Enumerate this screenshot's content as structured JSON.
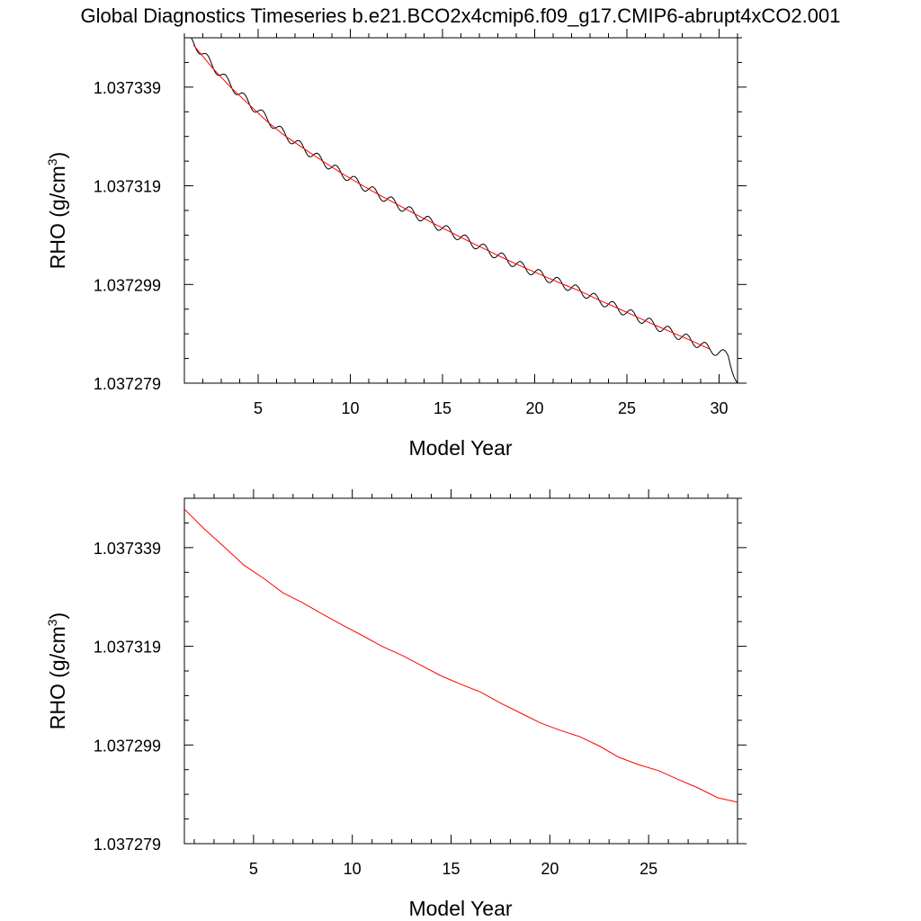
{
  "figure": {
    "title": "Global Diagnostics Timeseries b.e21.BCO2x4cmip6.f09_g17.CMIP6-abrupt4xCO2.001"
  },
  "chart_data": [
    {
      "type": "line",
      "xlabel": "Model Year",
      "ylabel": "RHO (g/cm³)",
      "ylabel_main": "RHO (g/cm",
      "ylabel_sup": "3",
      "ylabel_end": ")",
      "xlim": [
        1,
        31
      ],
      "ylim": [
        1.037279,
        1.037349
      ],
      "xticks": [
        5,
        10,
        15,
        20,
        25,
        30
      ],
      "yticks": [
        1.037279,
        1.037299,
        1.037319,
        1.037339
      ],
      "ytick_labels": [
        "1.037279",
        "1.037299",
        "1.037319",
        "1.037339"
      ],
      "grid": false,
      "series": [
        {
          "color": "#000000",
          "style": "monthly",
          "seasonal_amplitude": 9e-07,
          "x": [
            1.0,
            1.5,
            2.5,
            3.5,
            4.5,
            5.5,
            6.5,
            7.5,
            8.5,
            9.5,
            10.5,
            11.5,
            12.5,
            13.5,
            14.5,
            15.5,
            16.5,
            17.5,
            18.5,
            19.5,
            20.5,
            21.5,
            22.5,
            23.5,
            24.5,
            25.5,
            26.5,
            27.5,
            28.5,
            29.5,
            30.5,
            31.0
          ],
          "y": [
            1.0373495,
            1.037348,
            1.0373435,
            1.0373395,
            1.0373358,
            1.0373325,
            1.0373292,
            1.0373265,
            1.037324,
            1.0373216,
            1.0373194,
            1.0373173,
            1.0373153,
            1.0373133,
            1.0373114,
            1.0373095,
            1.0373076,
            1.0373058,
            1.037304,
            1.0373023,
            1.0373007,
            1.0372991,
            1.0372976,
            1.0372958,
            1.0372942,
            1.0372925,
            1.0372908,
            1.0372892,
            1.0372876,
            1.0372859,
            1.0372845,
            1.037279
          ]
        },
        {
          "color": "#ff0000",
          "style": "annual",
          "x": [
            1.5,
            2.5,
            3.5,
            4.5,
            5.5,
            6.5,
            7.5,
            8.5,
            9.5,
            10.5,
            11.5,
            12.5,
            13.5,
            14.5,
            15.5,
            16.5,
            17.5,
            18.5,
            19.5,
            20.5,
            21.5,
            22.5,
            23.5,
            24.5,
            25.5,
            26.5,
            27.5,
            28.5,
            29.5
          ],
          "y": [
            1.0373475,
            1.037343,
            1.037339,
            1.0373355,
            1.037332,
            1.037329,
            1.0373265,
            1.037324,
            1.0373216,
            1.0373194,
            1.0373173,
            1.0373153,
            1.0373133,
            1.0373114,
            1.0373095,
            1.0373076,
            1.0373058,
            1.037304,
            1.0373023,
            1.0373007,
            1.0372991,
            1.0372976,
            1.0372958,
            1.0372942,
            1.0372925,
            1.0372908,
            1.0372892,
            1.0372876,
            1.0372859
          ]
        }
      ]
    },
    {
      "type": "line",
      "xlabel": "Model Year",
      "ylabel": "RHO (g/cm³)",
      "ylabel_main": "RHO (g/cm",
      "ylabel_sup": "3",
      "ylabel_end": ")",
      "xlim": [
        1.5,
        29.5
      ],
      "ylim": [
        1.037279,
        1.037349
      ],
      "xticks": [
        5,
        10,
        15,
        20,
        25
      ],
      "yticks": [
        1.037279,
        1.037299,
        1.037319,
        1.037339
      ],
      "ytick_labels": [
        "1.037279",
        "1.037299",
        "1.037319",
        "1.037339"
      ],
      "grid": false,
      "series": [
        {
          "color": "#ff0000",
          "style": "annual",
          "x": [
            1.5,
            2.5,
            3.5,
            4.5,
            5.5,
            6.5,
            7.5,
            8.5,
            9.5,
            10.5,
            11.5,
            12.5,
            13.5,
            14.5,
            15.5,
            16.5,
            17.5,
            18.5,
            19.5,
            20.5,
            21.5,
            22.5,
            23.5,
            24.5,
            25.5,
            26.5,
            27.5,
            28.5,
            29.5
          ],
          "y": [
            1.0373468,
            1.0373428,
            1.0373392,
            1.0373355,
            1.0373328,
            1.0373298,
            1.0373278,
            1.0373255,
            1.0373233,
            1.0373212,
            1.037319,
            1.0373172,
            1.0373151,
            1.037313,
            1.0373113,
            1.0373097,
            1.0373075,
            1.0373055,
            1.0373035,
            1.037302,
            1.0373007,
            1.0372988,
            1.0372965,
            1.037295,
            1.0372938,
            1.037292,
            1.0372903,
            1.0372883,
            1.0372874
          ]
        }
      ]
    }
  ]
}
